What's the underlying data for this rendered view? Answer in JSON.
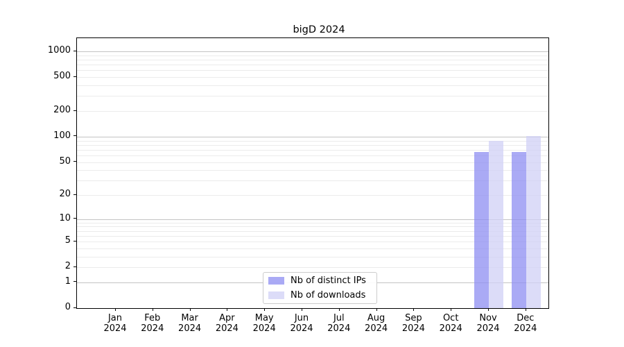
{
  "chart_data": {
    "type": "bar",
    "title": "bigD 2024",
    "categories": [
      "Jan 2024",
      "Feb 2024",
      "Mar 2024",
      "Apr 2024",
      "May 2024",
      "Jun 2024",
      "Jul 2024",
      "Aug 2024",
      "Sep 2024",
      "Oct 2024",
      "Nov 2024",
      "Dec 2024"
    ],
    "series": [
      {
        "name": "Nb of distinct IPs",
        "fill": "#8d8df1",
        "opacity": 0.75,
        "values": [
          0,
          0,
          0,
          0,
          0,
          0,
          0,
          0,
          0,
          0,
          66,
          66
        ]
      },
      {
        "name": "Nb of downloads",
        "fill": "#d0d0f5",
        "opacity": 0.75,
        "values": [
          0,
          0,
          0,
          0,
          0,
          0,
          0,
          0,
          0,
          0,
          90,
          102
        ]
      }
    ],
    "y_axis": {
      "scale": "log1p",
      "ticks": [
        0,
        1,
        2,
        5,
        10,
        20,
        50,
        100,
        200,
        500,
        1000
      ],
      "minor_ticks": [
        3,
        4,
        6,
        7,
        8,
        9,
        30,
        40,
        60,
        70,
        80,
        90,
        300,
        400,
        600,
        700,
        800,
        900
      ],
      "ylim": [
        0,
        1430
      ]
    },
    "grid": true,
    "legend": {
      "position": "lower center"
    },
    "colors": {
      "major_grid": "#c3c3c3",
      "minor_grid": "#ebebeb",
      "spine": "#000000",
      "text": "#000000"
    }
  }
}
